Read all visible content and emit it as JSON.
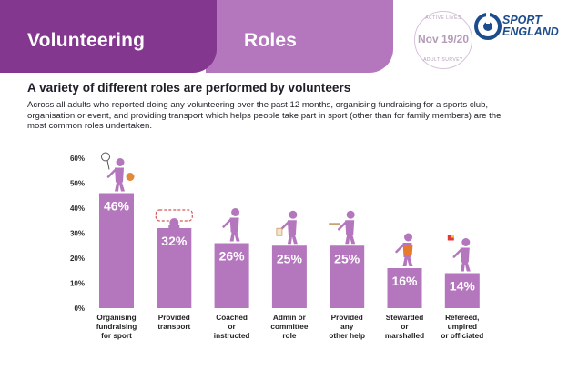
{
  "header": {
    "tab1_label": "Volunteering",
    "tab2_label": "Roles",
    "badge": {
      "top_text": "ACTIVE LIVES",
      "date": "Nov 19/20",
      "bottom_text": "ADULT SURVEY"
    },
    "logo": {
      "line1": "SPORT",
      "line2": "ENGLAND"
    }
  },
  "headline": "A variety of different roles are performed by volunteers",
  "intro": "Across all adults who reported doing any volunteering over the past 12 months, organising fundraising for a sports club, organisation or event, and providing transport which helps people take part in sport (other than for family members) are the most common roles undertaken.",
  "colors": {
    "primary": "#84378f",
    "secondary": "#b476bd",
    "bar": "#b476bd",
    "logo": "#1c4c8c"
  },
  "chart_data": {
    "type": "bar",
    "categories": [
      [
        "Organising",
        "fundraising",
        "for sport"
      ],
      [
        "Provided",
        "transport"
      ],
      [
        "Coached",
        "or",
        "instructed"
      ],
      [
        "Admin or",
        "committee",
        "role"
      ],
      [
        "Provided",
        "any",
        "other help"
      ],
      [
        "Stewarded",
        "or",
        "marshalled"
      ],
      [
        "Refereed,",
        "umpired",
        "or officiated"
      ]
    ],
    "values": [
      46,
      32,
      26,
      25,
      25,
      16,
      14
    ],
    "value_labels": [
      "46%",
      "32%",
      "26%",
      "25%",
      "25%",
      "16%",
      "14%"
    ],
    "ylim": [
      0,
      60
    ],
    "yticks": [
      0,
      10,
      20,
      30,
      40,
      50,
      60
    ],
    "ytick_labels": [
      "0%",
      "10%",
      "20%",
      "30%",
      "40%",
      "50%",
      "60%"
    ],
    "grid": false,
    "icons": [
      "tennis-volunteer-icon",
      "car-dashboard-icon",
      "coach-icon",
      "clipboard-admin-icon",
      "helper-tray-icon",
      "steward-vest-icon",
      "referee-flag-icon"
    ]
  }
}
